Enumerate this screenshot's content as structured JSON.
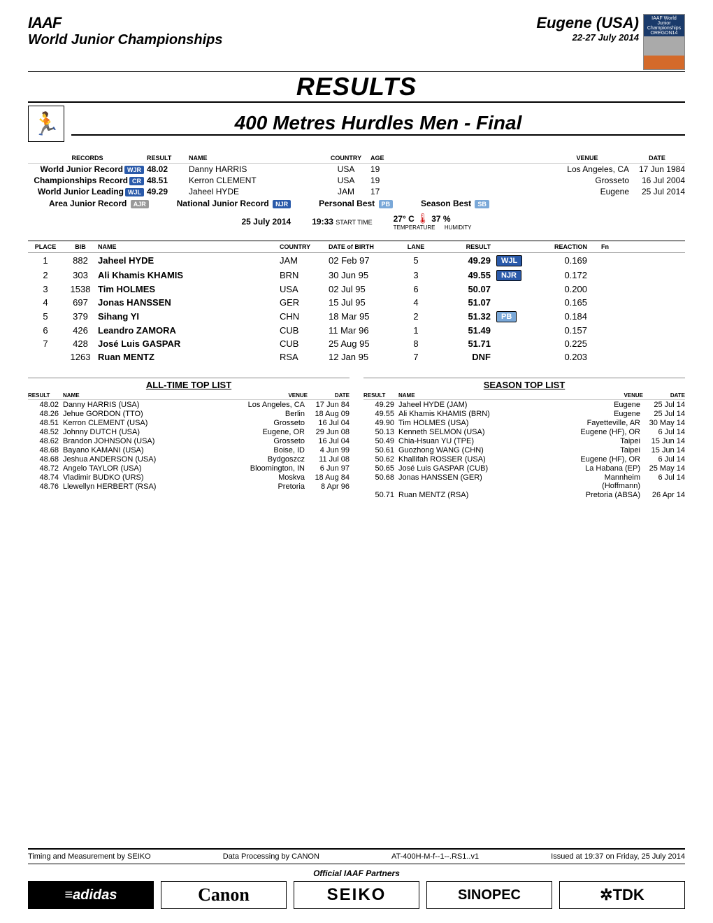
{
  "header": {
    "org": "IAAF",
    "champ": "World Junior Championships",
    "city": "Eugene (USA)",
    "dates": "22-27 July 2014",
    "event_logo_text": "IAAF World Junior Championships OREGON14"
  },
  "titles": {
    "results": "RESULTS",
    "event": "400 Metres Hurdles Men - Final"
  },
  "records_header": {
    "records": "RECORDS",
    "result": "RESULT",
    "name": "NAME",
    "country": "COUNTRY",
    "age": "AGE",
    "venue": "VENUE",
    "date": "DATE"
  },
  "records": [
    {
      "label": "World Junior Record",
      "badge": "WJR",
      "badge_color": "blue",
      "result": "48.02",
      "name": "Danny HARRIS",
      "country": "USA",
      "age": "19",
      "venue": "Los Angeles, CA",
      "date": "17 Jun 1984"
    },
    {
      "label": "Championships Record",
      "badge": "CR",
      "badge_color": "blue",
      "result": "48.51",
      "name": "Kerron CLEMENT",
      "country": "USA",
      "age": "19",
      "venue": "Grosseto",
      "date": "16 Jul 2004"
    },
    {
      "label": "World Junior Leading",
      "badge": "WJL",
      "badge_color": "blue",
      "result": "49.29",
      "name": "Jaheel HYDE",
      "country": "JAM",
      "age": "17",
      "venue": "Eugene",
      "date": "25 Jul 2014"
    }
  ],
  "legend": {
    "ajr_label": "Area Junior Record",
    "ajr_badge": "AJR",
    "njr_label": "National Junior Record",
    "njr_badge": "NJR",
    "pb_label": "Personal Best",
    "pb_badge": "PB",
    "sb_label": "Season Best",
    "sb_badge": "SB"
  },
  "conditions": {
    "date": "25 July  2014",
    "start_time": "19:33",
    "start_time_label": "START TIME",
    "temp": "27° C",
    "temp_label": "TEMPERATURE",
    "humidity": "37 %",
    "humidity_label": "HUMIDITY"
  },
  "table_header": {
    "place": "PLACE",
    "bib": "BIB",
    "name": "NAME",
    "country": "COUNTRY",
    "dob": "DATE of BIRTH",
    "lane": "LANE",
    "result": "RESULT",
    "reaction": "REACTION",
    "fn": "Fn"
  },
  "results": [
    {
      "place": "1",
      "bib": "882",
      "name": "Jaheel  HYDE",
      "country": "JAM",
      "dob": "02 Feb 97",
      "lane": "5",
      "result": "49.29",
      "badge": "WJL",
      "badge_color": "blue",
      "reaction": "0.169"
    },
    {
      "place": "2",
      "bib": "303",
      "name": "Ali Khamis  KHAMIS",
      "country": "BRN",
      "dob": "30 Jun 95",
      "lane": "3",
      "result": "49.55",
      "badge": "NJR",
      "badge_color": "blue",
      "reaction": "0.172"
    },
    {
      "place": "3",
      "bib": "1538",
      "name": "Tim  HOLMES",
      "country": "USA",
      "dob": "02 Jul 95",
      "lane": "6",
      "result": "50.07",
      "badge": "",
      "reaction": "0.200"
    },
    {
      "place": "4",
      "bib": "697",
      "name": "Jonas  HANSSEN",
      "country": "GER",
      "dob": "15 Jul 95",
      "lane": "4",
      "result": "51.07",
      "badge": "",
      "reaction": "0.165"
    },
    {
      "place": "5",
      "bib": "379",
      "name": "Sihang  YI",
      "country": "CHN",
      "dob": "18 Mar 95",
      "lane": "2",
      "result": "51.32",
      "badge": "PB",
      "badge_color": "lightblue",
      "reaction": "0.184"
    },
    {
      "place": "6",
      "bib": "426",
      "name": "Leandro  ZAMORA",
      "country": "CUB",
      "dob": "11 Mar 96",
      "lane": "1",
      "result": "51.49",
      "badge": "",
      "reaction": "0.157"
    },
    {
      "place": "7",
      "bib": "428",
      "name": "José Luis  GASPAR",
      "country": "CUB",
      "dob": "25 Aug 95",
      "lane": "8",
      "result": "51.71",
      "badge": "",
      "reaction": "0.225"
    },
    {
      "place": "",
      "bib": "1263",
      "name": "Ruan  MENTZ",
      "country": "RSA",
      "dob": "12 Jan 95",
      "lane": "7",
      "result": "DNF",
      "badge": "",
      "reaction": "0.203"
    }
  ],
  "alltime": {
    "title": "ALL-TIME TOP LIST",
    "header": {
      "result": "RESULT",
      "name": "NAME",
      "venue": "VENUE",
      "date": "DATE"
    },
    "rows": [
      {
        "r": "48.02",
        "n": "Danny HARRIS (USA)",
        "v": "Los Angeles, CA",
        "d": "17 Jun 84"
      },
      {
        "r": "48.26",
        "n": "Jehue GORDON (TTO)",
        "v": "Berlin",
        "d": "18 Aug 09"
      },
      {
        "r": "48.51",
        "n": "Kerron CLEMENT (USA)",
        "v": "Grosseto",
        "d": "16 Jul 04"
      },
      {
        "r": "48.52",
        "n": "Johnny DUTCH (USA)",
        "v": "Eugene, OR",
        "d": "29 Jun 08"
      },
      {
        "r": "48.62",
        "n": "Brandon JOHNSON (USA)",
        "v": "Grosseto",
        "d": "16 Jul 04"
      },
      {
        "r": "48.68",
        "n": "Bayano KAMANI (USA)",
        "v": "Boise, ID",
        "d": "4 Jun 99"
      },
      {
        "r": "48.68",
        "n": "Jeshua ANDERSON (USA)",
        "v": "Bydgoszcz",
        "d": "11 Jul 08"
      },
      {
        "r": "48.72",
        "n": "Angelo TAYLOR (USA)",
        "v": "Bloomington, IN",
        "d": "6 Jun 97"
      },
      {
        "r": "48.74",
        "n": "Vladimir BUDKO (URS)",
        "v": "Moskva",
        "d": "18 Aug 84"
      },
      {
        "r": "48.76",
        "n": "Llewellyn HERBERT (RSA)",
        "v": "Pretoria",
        "d": "8 Apr 96"
      }
    ]
  },
  "season": {
    "title": "SEASON TOP LIST",
    "header": {
      "result": "RESULT",
      "name": "NAME",
      "venue": "VENUE",
      "date": "DATE"
    },
    "rows": [
      {
        "r": "49.29",
        "n": "Jaheel HYDE (JAM)",
        "v": "Eugene",
        "d": "25 Jul 14"
      },
      {
        "r": "49.55",
        "n": "Ali Khamis KHAMIS (BRN)",
        "v": "Eugene",
        "d": "25 Jul 14"
      },
      {
        "r": "49.90",
        "n": "Tim HOLMES (USA)",
        "v": "Fayetteville, AR",
        "d": "30 May 14"
      },
      {
        "r": "50.13",
        "n": "Kenneth SELMON (USA)",
        "v": "Eugene (HF), OR",
        "d": "6 Jul 14"
      },
      {
        "r": "50.49",
        "n": "Chia-Hsuan YU (TPE)",
        "v": "Taipei",
        "d": "15 Jun 14"
      },
      {
        "r": "50.61",
        "n": "Guozhong WANG (CHN)",
        "v": "Taipei",
        "d": "15 Jun 14"
      },
      {
        "r": "50.62",
        "n": "Khallifah ROSSER (USA)",
        "v": "Eugene (HF), OR",
        "d": "6 Jul 14"
      },
      {
        "r": "50.65",
        "n": "José Luis GASPAR (CUB)",
        "v": "La Habana (EP)",
        "d": "25 May 14"
      },
      {
        "r": "50.68",
        "n": "Jonas HANSSEN (GER)",
        "v": "Mannheim (Hoffmann)",
        "d": "6 Jul 14"
      },
      {
        "r": "50.71",
        "n": "Ruan MENTZ (RSA)",
        "v": "Pretoria (ABSA)",
        "d": "26 Apr 14"
      }
    ]
  },
  "footer": {
    "timing": "Timing and Measurement by SEIKO",
    "processing": "Data Processing by CANON",
    "code": "AT-400H-M-f--1--.RS1..v1",
    "issued": "Issued at 19:37 on Friday, 25 July  2014",
    "partners_label": "Official IAAF Partners",
    "partners": [
      "≡adidas",
      "Canon",
      "SEIKO",
      "SINOPEC",
      "✲TDK"
    ]
  }
}
